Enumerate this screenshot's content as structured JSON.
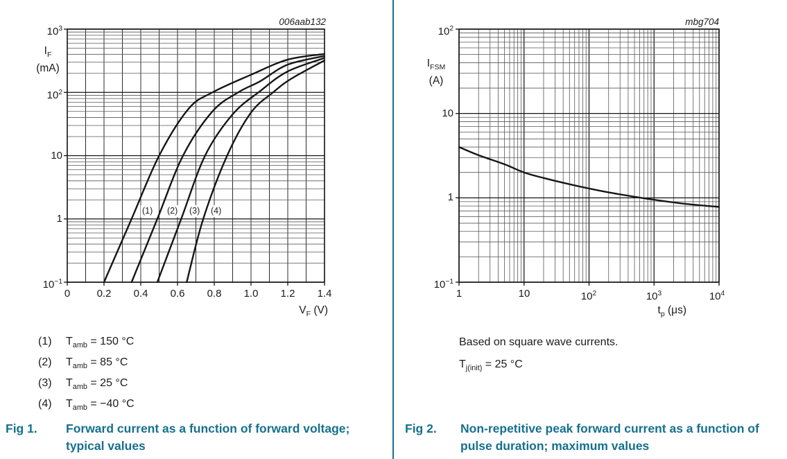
{
  "page": {
    "accent_color": "#16708E",
    "text_color": "#1b1b1b",
    "curve_color": "#161616"
  },
  "fig1": {
    "plot_id": "006aab132",
    "y_unit": [
      "I_{F}",
      "(mA)"
    ],
    "y_ticks": [
      "10^{3}",
      "10^{2}",
      "10",
      "1",
      "10^{−1}"
    ],
    "x_ticks": [
      "0",
      "0.2",
      "0.4",
      "0.6",
      "0.8",
      "1.0",
      "1.2",
      "1.4"
    ],
    "x_axis_label": "V_{F} (V)",
    "curve_tags": [
      "(1)",
      "(2)",
      "(3)",
      "(4)"
    ],
    "legend": [
      {
        "index": "(1)",
        "label": "T_{amb} = 150 °C"
      },
      {
        "index": "(2)",
        "label": "T_{amb} = 85 °C"
      },
      {
        "index": "(3)",
        "label": "T_{amb} = 25 °C"
      },
      {
        "index": "(4)",
        "label": "T_{amb} = −40 °C"
      }
    ],
    "caption_tag": "Fig 1.",
    "caption": "Forward current as a function of forward voltage; typical values"
  },
  "fig2": {
    "plot_id": "mbg704",
    "y_unit": [
      "I_{FSM}",
      "(A)"
    ],
    "y_ticks": [
      "10^{2}",
      "10",
      "1",
      "10^{−1}"
    ],
    "x_ticks": [
      "1",
      "10",
      "10^{2}",
      "10^{3}",
      "10^{4}"
    ],
    "x_axis_label": "t_{p} (μs)",
    "notes": [
      "Based on square wave currents.",
      "T_{j(init)} = 25 °C"
    ],
    "caption_tag": "Fig 2.",
    "caption": "Non-repetitive peak forward current as a function of pulse duration; maximum values"
  },
  "chart_data": [
    {
      "type": "line",
      "title": "Forward current as a function of forward voltage; typical values",
      "xlabel": "VF (V)",
      "ylabel": "IF (mA)",
      "x_scale": "linear",
      "y_scale": "log",
      "xlim": [
        0,
        1.4
      ],
      "ylim": [
        0.1,
        1000
      ],
      "x_grid_step": 0.1,
      "x_tick_step": 0.2,
      "grid": true,
      "legend_position": "below",
      "series": [
        {
          "name": "(1) Tamb = 150 °C",
          "points": [
            [
              0.2,
              0.1
            ],
            [
              0.35,
              1
            ],
            [
              0.5,
              10
            ],
            [
              0.66,
              55
            ],
            [
              0.79,
              100
            ],
            [
              1.0,
              190
            ],
            [
              1.2,
              330
            ],
            [
              1.4,
              405
            ]
          ]
        },
        {
          "name": "(2) Tamb = 85 °C",
          "points": [
            [
              0.35,
              0.1
            ],
            [
              0.49,
              1
            ],
            [
              0.63,
              10
            ],
            [
              0.79,
              50
            ],
            [
              0.93,
              100
            ],
            [
              1.05,
              150
            ],
            [
              1.2,
              275
            ],
            [
              1.4,
              377
            ]
          ]
        },
        {
          "name": "(3) Tamb = 25 °C",
          "points": [
            [
              0.49,
              0.1
            ],
            [
              0.62,
              1
            ],
            [
              0.75,
              10
            ],
            [
              0.9,
              45
            ],
            [
              1.05,
              105
            ],
            [
              1.2,
              215
            ],
            [
              1.4,
              350
            ]
          ]
        },
        {
          "name": "(4) Tamb = −40 °C",
          "points": [
            [
              0.65,
              0.1
            ],
            [
              0.74,
              1
            ],
            [
              0.87,
              10
            ],
            [
              1.0,
              48
            ],
            [
              1.12,
              100
            ],
            [
              1.22,
              165
            ],
            [
              1.4,
              320
            ]
          ]
        }
      ]
    },
    {
      "type": "line",
      "title": "Non-repetitive peak forward current as a function of pulse duration; maximum values",
      "xlabel": "tp (us)",
      "ylabel": "IFSM (A)",
      "x_scale": "log",
      "y_scale": "log",
      "xlim": [
        1,
        10000
      ],
      "ylim": [
        0.1,
        100
      ],
      "grid": true,
      "notes": [
        "Based on square wave currents.",
        "Tj(init) = 25 °C"
      ],
      "series": [
        {
          "name": "IFSM maximum",
          "points": [
            [
              1,
              4.0
            ],
            [
              2,
              3.2
            ],
            [
              5,
              2.5
            ],
            [
              10,
              2.0
            ],
            [
              20,
              1.72
            ],
            [
              50,
              1.45
            ],
            [
              100,
              1.29
            ],
            [
              200,
              1.16
            ],
            [
              500,
              1.03
            ],
            [
              1000,
              0.95
            ],
            [
              3000,
              0.85
            ],
            [
              10000,
              0.78
            ]
          ]
        }
      ]
    }
  ]
}
